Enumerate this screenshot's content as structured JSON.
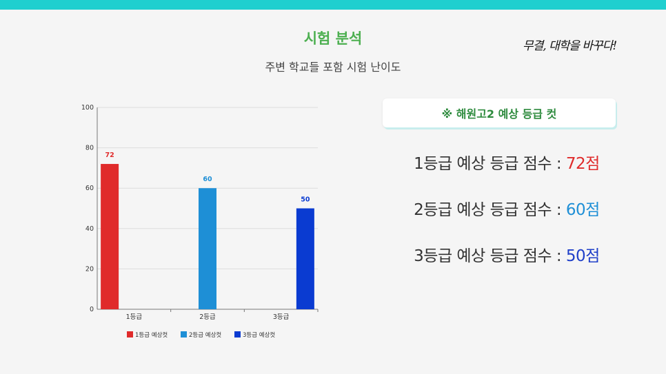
{
  "header": {
    "title": "시험 분석",
    "subtitle": "주변 학교들 포함 시험 난이도",
    "slogan": "무결, 대학을 바꾸다!"
  },
  "panel": {
    "title": "※ 해원고2 예상 등급 컷",
    "rows": [
      {
        "label": "1등급 예상 등급 점수 : ",
        "value": "72점",
        "color": "#e02b2b"
      },
      {
        "label": "2등급 예상 등급 점수 : ",
        "value": "60점",
        "color": "#1e8fd6"
      },
      {
        "label": "3등급 예상 등급 점수 : ",
        "value": "50점",
        "color": "#1f3fc9"
      }
    ]
  },
  "colors": {
    "accent": "#1fcfcf",
    "title": "#4caf50"
  },
  "chart_data": {
    "type": "bar",
    "categories": [
      "1등급",
      "2등급",
      "3등급"
    ],
    "series": [
      {
        "name": "1등급 예상컷",
        "color": "#e02b2b",
        "values": [
          72,
          null,
          null
        ]
      },
      {
        "name": "2등급 예상컷",
        "color": "#1e8fd6",
        "values": [
          null,
          60,
          null
        ]
      },
      {
        "name": "3등급 예상컷",
        "color": "#0a3bd1",
        "values": [
          null,
          null,
          50
        ]
      }
    ],
    "yticks": [
      0,
      20,
      40,
      60,
      80,
      100
    ],
    "ylim": [
      0,
      100
    ],
    "title": "",
    "xlabel": "",
    "ylabel": "",
    "grid": true,
    "legend": "bottom"
  }
}
